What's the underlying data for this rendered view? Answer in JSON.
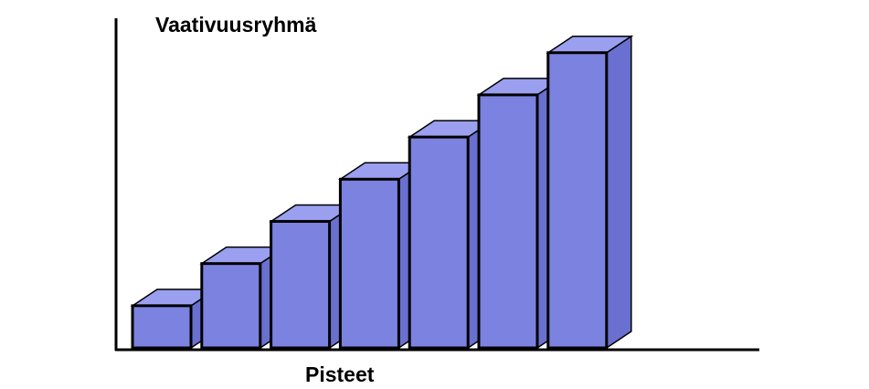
{
  "chart_data": {
    "type": "bar",
    "style": "3d",
    "ylabel": "Vaativuusryhmä",
    "xlabel": "Pisteet",
    "values": [
      1,
      2,
      3,
      4,
      5,
      6,
      7
    ],
    "ylim": [
      0,
      7.6
    ],
    "grid": false,
    "legend": "none",
    "bar_color": "#7b82e0",
    "top_color": "#9a9ff0",
    "side_color": "#6a70cf",
    "outline_color": "#000000"
  }
}
